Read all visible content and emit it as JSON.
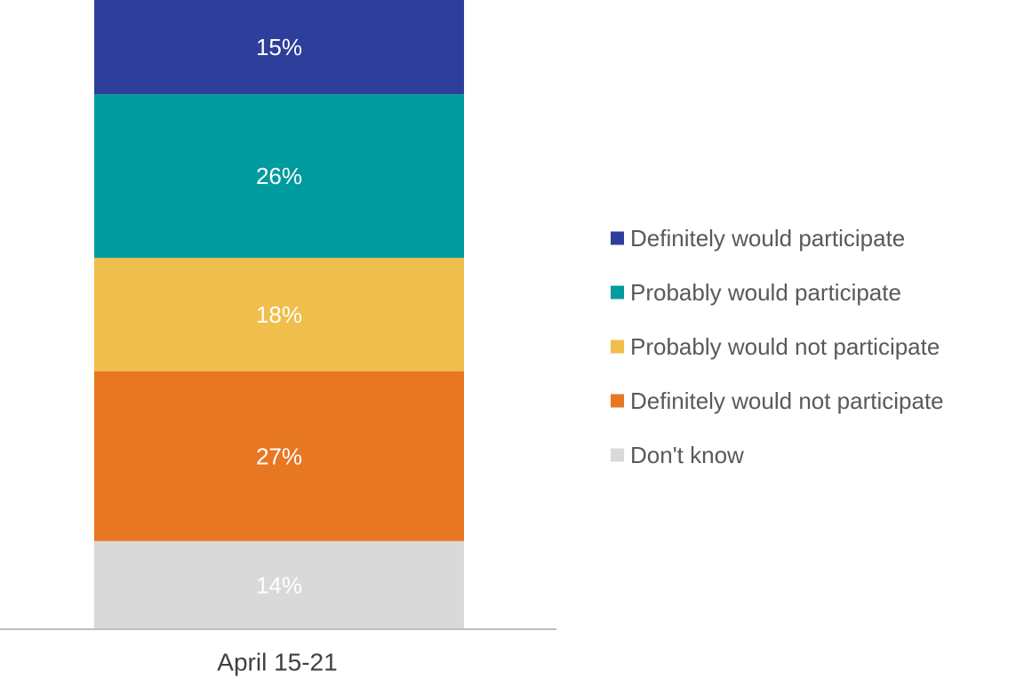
{
  "chart_data": {
    "type": "bar",
    "stacked": true,
    "orientation": "vertical",
    "categories": [
      "April 15-21"
    ],
    "series": [
      {
        "name": "Definitely would participate",
        "values": [
          15
        ],
        "label": "15%",
        "color": "#2E3E9B",
        "label_color": "#ffffff"
      },
      {
        "name": "Probably would participate",
        "values": [
          26
        ],
        "label": "26%",
        "color": "#009B9E",
        "label_color": "#ffffff"
      },
      {
        "name": "Probably would not participate",
        "values": [
          18
        ],
        "label": "18%",
        "color": "#F0BE4A",
        "label_color": "#ffffff"
      },
      {
        "name": "Definitely would not participate",
        "values": [
          27
        ],
        "label": "27%",
        "color": "#E87722",
        "label_color": "#ffffff"
      },
      {
        "name": "Don't know",
        "values": [
          14
        ],
        "label": "14%",
        "color": "#D9D9D9",
        "label_color": "#ffffff"
      }
    ],
    "unit": "%",
    "ylim": [
      0,
      100
    ],
    "grid": false,
    "legend_position": "right"
  }
}
